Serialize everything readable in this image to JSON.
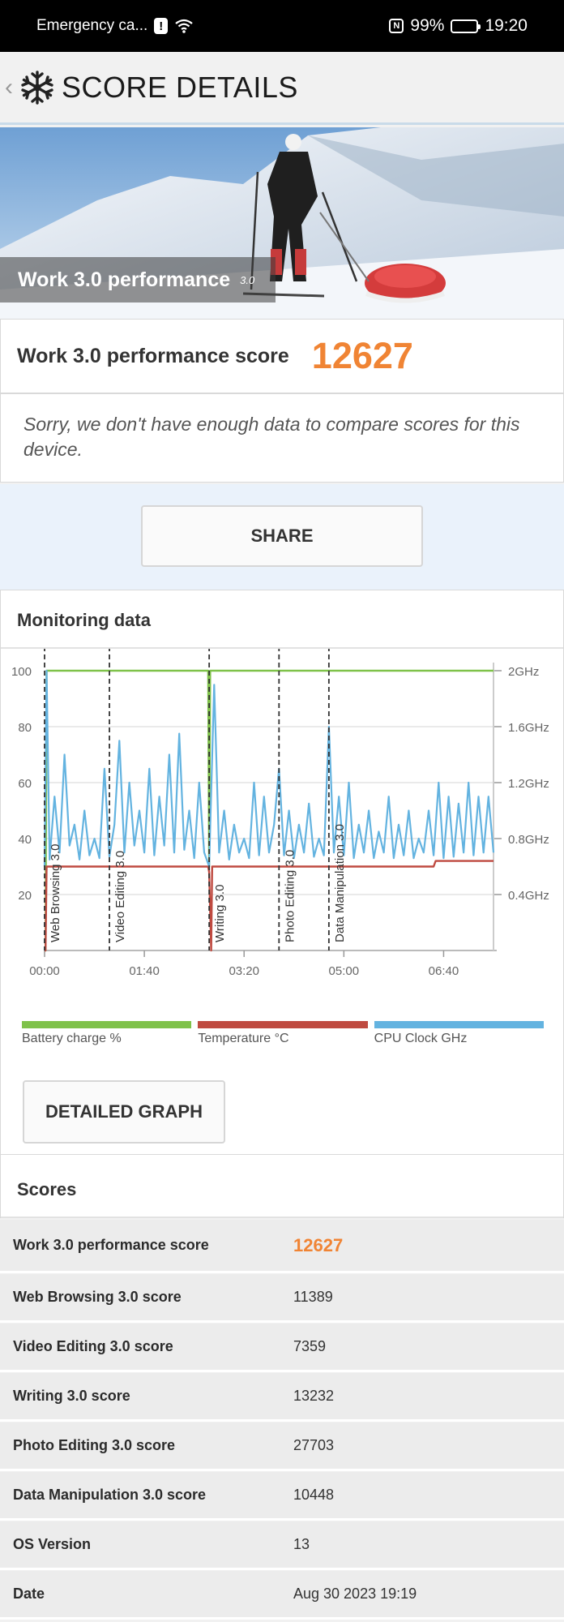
{
  "status_bar": {
    "carrier": "Emergency ca...",
    "alert_badge": "!",
    "nfc": "N",
    "battery": "99%",
    "battery_level": 0.99,
    "time": "19:20"
  },
  "header": {
    "title": "SCORE DETAILS",
    "back_glyph": "‹"
  },
  "hero": {
    "title": "Work 3.0 performance",
    "badge": "3.0"
  },
  "score": {
    "label": "Work 3.0 performance score",
    "value": "12627"
  },
  "notice": "Sorry, we don't have enough data to compare scores for this device.",
  "share_label": "SHARE",
  "monitoring": {
    "title": "Monitoring data",
    "detail_button": "DETAILED GRAPH",
    "legend": [
      {
        "label": "Battery charge %",
        "color": "#7fc24a"
      },
      {
        "label": "Temperature °C",
        "color": "#bf4a40"
      },
      {
        "label": "CPU Clock GHz",
        "color": "#63b3e0"
      }
    ]
  },
  "chart_data": {
    "type": "line",
    "x_unit": "mm:ss",
    "xlim": [
      "00:00",
      "07:30"
    ],
    "x_ticks": [
      "00:00",
      "01:40",
      "03:20",
      "05:00",
      "06:40"
    ],
    "y_left": {
      "ticks": [
        "100",
        "80",
        "60",
        "40",
        "20"
      ],
      "ylim": [
        0,
        100
      ]
    },
    "y_right": {
      "ticks": [
        "2GHz",
        "1.6GHz",
        "1.2GHz",
        "0.8GHz",
        "0.4GHz"
      ],
      "ylim": [
        0,
        2.0
      ]
    },
    "grid": true,
    "markers": [
      {
        "label": "Web Browsing 3.0",
        "x": "00:00"
      },
      {
        "label": "Video Editing 3.0",
        "x": "01:05"
      },
      {
        "label": "Writing 3.0",
        "x": "02:45"
      },
      {
        "label": "Photo Editing 3.0",
        "x": "03:55"
      },
      {
        "label": "Data Manipulation 3.0",
        "x": "04:45"
      }
    ],
    "series": [
      {
        "name": "Battery charge %",
        "axis": "left",
        "x": [
          "00:00",
          "00:01",
          "00:02",
          "02:44",
          "02:45",
          "02:46",
          "07:30"
        ],
        "y": [
          0,
          0,
          100,
          100,
          30,
          100,
          100
        ]
      },
      {
        "name": "Temperature °C",
        "axis": "left",
        "x": [
          "00:00",
          "00:01",
          "00:02",
          "02:44",
          "02:45",
          "02:47",
          "02:48",
          "06:30",
          "06:32",
          "07:30"
        ],
        "y": [
          0,
          0,
          30,
          30,
          28,
          0,
          30,
          30,
          32,
          32
        ]
      },
      {
        "name": "CPU Clock GHz",
        "axis": "right",
        "x": [
          "00:00",
          "00:02",
          "00:05",
          "00:10",
          "00:15",
          "00:20",
          "00:25",
          "00:30",
          "00:35",
          "00:40",
          "00:45",
          "00:50",
          "00:55",
          "01:00",
          "01:05",
          "01:10",
          "01:15",
          "01:20",
          "01:25",
          "01:30",
          "01:35",
          "01:40",
          "01:45",
          "01:50",
          "01:55",
          "02:00",
          "02:05",
          "02:10",
          "02:15",
          "02:20",
          "02:25",
          "02:30",
          "02:35",
          "02:40",
          "02:45",
          "02:50",
          "02:55",
          "03:00",
          "03:05",
          "03:10",
          "03:15",
          "03:20",
          "03:25",
          "03:30",
          "03:35",
          "03:40",
          "03:45",
          "03:50",
          "03:55",
          "04:00",
          "04:05",
          "04:10",
          "04:15",
          "04:20",
          "04:25",
          "04:30",
          "04:35",
          "04:40",
          "04:45",
          "04:50",
          "04:55",
          "05:00",
          "05:05",
          "05:10",
          "05:15",
          "05:20",
          "05:25",
          "05:30",
          "05:35",
          "05:40",
          "05:45",
          "05:50",
          "05:55",
          "06:00",
          "06:05",
          "06:10",
          "06:15",
          "06:20",
          "06:25",
          "06:30",
          "06:35",
          "06:40",
          "06:45",
          "06:50",
          "06:55",
          "07:00",
          "07:05",
          "07:10",
          "07:15",
          "07:20",
          "07:25",
          "07:30"
        ],
        "y": [
          0.6,
          2.0,
          0.65,
          1.1,
          0.7,
          1.4,
          0.75,
          0.9,
          0.65,
          1.0,
          0.68,
          0.8,
          0.66,
          1.3,
          0.67,
          0.9,
          1.5,
          0.7,
          1.2,
          0.75,
          1.0,
          0.7,
          1.3,
          0.68,
          1.1,
          0.75,
          1.4,
          0.7,
          1.55,
          0.72,
          1.0,
          0.66,
          1.2,
          0.7,
          0.6,
          1.9,
          0.7,
          1.0,
          0.65,
          0.9,
          0.7,
          0.8,
          0.66,
          1.2,
          0.68,
          1.1,
          0.7,
          0.9,
          1.3,
          0.68,
          1.0,
          0.66,
          0.9,
          0.7,
          1.05,
          0.67,
          0.8,
          0.68,
          1.6,
          0.7,
          1.1,
          0.68,
          1.2,
          0.66,
          0.9,
          0.7,
          1.0,
          0.66,
          0.85,
          0.7,
          1.1,
          0.66,
          0.9,
          0.68,
          1.0,
          0.66,
          0.8,
          0.7,
          1.0,
          0.68,
          1.2,
          0.66,
          1.1,
          0.67,
          1.05,
          0.7,
          1.2,
          0.68,
          1.1,
          0.7,
          1.1,
          0.7
        ]
      }
    ]
  },
  "scores": {
    "title": "Scores",
    "rows": [
      {
        "label": "Work 3.0 performance score",
        "value": "12627"
      },
      {
        "label": "Web Browsing 3.0 score",
        "value": "11389"
      },
      {
        "label": "Video Editing 3.0 score",
        "value": "7359"
      },
      {
        "label": "Writing 3.0 score",
        "value": "13232"
      },
      {
        "label": "Photo Editing 3.0 score",
        "value": "27703"
      },
      {
        "label": "Data Manipulation 3.0 score",
        "value": "10448"
      },
      {
        "label": "OS Version",
        "value": "13"
      },
      {
        "label": "Date",
        "value": "Aug 30 2023 19:19"
      }
    ]
  }
}
